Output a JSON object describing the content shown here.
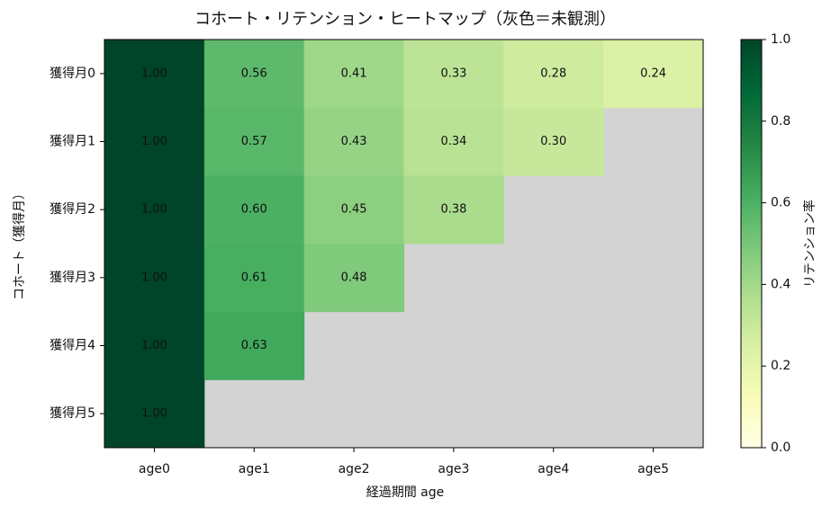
{
  "chart_data": {
    "type": "heatmap",
    "title": "コホート・リテンション・ヒートマップ（灰色＝未観測）",
    "x_label": "経過期間 age",
    "y_label": "コホート（獲得月）",
    "categories": [
      "age0",
      "age1",
      "age2",
      "age3",
      "age4",
      "age5"
    ],
    "rows": [
      "獲得月0",
      "獲得月1",
      "獲得月2",
      "獲得月3",
      "獲得月4",
      "獲得月5"
    ],
    "values": [
      [
        1.0,
        0.56,
        0.41,
        0.33,
        0.28,
        0.24
      ],
      [
        1.0,
        0.57,
        0.43,
        0.34,
        0.3,
        null
      ],
      [
        1.0,
        0.6,
        0.45,
        0.38,
        null,
        null
      ],
      [
        1.0,
        0.61,
        0.48,
        null,
        null,
        null
      ],
      [
        1.0,
        0.63,
        null,
        null,
        null,
        null
      ],
      [
        1.0,
        null,
        null,
        null,
        null,
        null
      ]
    ],
    "value_labels": [
      [
        "1.00",
        "0.56",
        "0.41",
        "0.33",
        "0.28",
        "0.24"
      ],
      [
        "1.00",
        "0.57",
        "0.43",
        "0.34",
        "0.30",
        null
      ],
      [
        "1.00",
        "0.60",
        "0.45",
        "0.38",
        null,
        null
      ],
      [
        "1.00",
        "0.61",
        "0.48",
        null,
        null,
        null
      ],
      [
        "1.00",
        "0.63",
        null,
        null,
        null,
        null
      ],
      [
        "1.00",
        null,
        null,
        null,
        null,
        null
      ]
    ],
    "colormap": "YlGn",
    "missing_color": "#d3d3d3",
    "colorbar": {
      "label": "リテンション率",
      "lim": [
        0,
        1
      ],
      "ticks": [
        {
          "value": 0,
          "label": "0.0"
        },
        0.2,
        0.4,
        0.6,
        0.8,
        {
          "value": 1,
          "label": "1.0"
        }
      ]
    }
  }
}
